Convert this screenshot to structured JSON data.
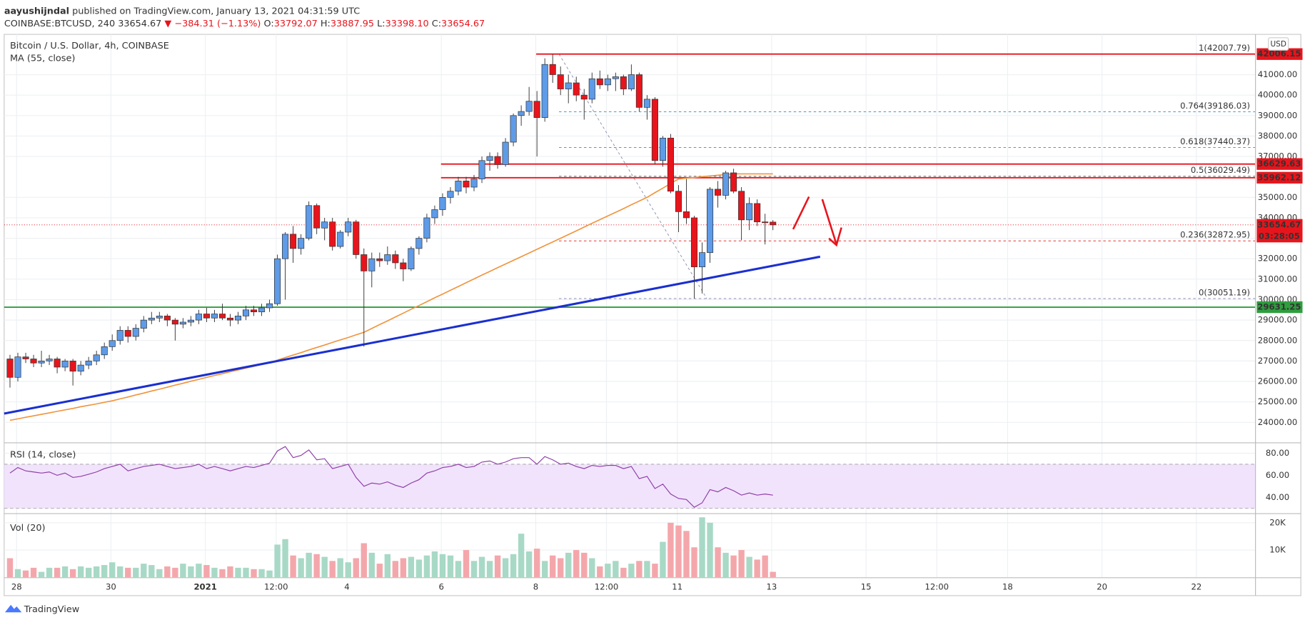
{
  "header": {
    "author": "aayushijndal",
    "published": "published on TradingView.com, January 13, 2021 04:31:59 UTC",
    "symbol": "COINBASE:BTCUSD, 240",
    "last": "33654.67",
    "arrow": "▼",
    "change": "−384.31 (−1.13%)",
    "o_label": "O:",
    "o": "33792.07",
    "h_label": "H:",
    "h": "33887.95",
    "l_label": "L:",
    "l": "33398.10",
    "c_label": "C:",
    "c": "33654.67"
  },
  "footer": {
    "brand": "TradingView"
  },
  "chart_data": [
    {
      "type": "candlestick",
      "title": "Bitcoin / U.S. Dollar, 4h, COINBASE",
      "currency": "USD",
      "up_color": "#5e9be8",
      "down_color": "#e8141c",
      "xlim": [
        -0.74,
        158.3
      ],
      "ylim": [
        23060,
        42970
      ],
      "xticks": [
        {
          "value": 0.84,
          "label": "28"
        },
        {
          "value": 12.84,
          "label": "30"
        },
        {
          "value": 24.84,
          "label": "2021"
        },
        {
          "value": 33.84,
          "label": "12:00"
        },
        {
          "value": 42.84,
          "label": "4"
        },
        {
          "value": 54.84,
          "label": "6"
        },
        {
          "value": 66.84,
          "label": "8"
        },
        {
          "value": 75.84,
          "label": "12:00"
        },
        {
          "value": 84.84,
          "label": "11"
        },
        {
          "value": 96.84,
          "label": "13"
        },
        {
          "value": 108.84,
          "label": "15"
        },
        {
          "value": 117.84,
          "label": "12:00"
        },
        {
          "value": 126.84,
          "label": "18"
        },
        {
          "value": 138.84,
          "label": "20"
        },
        {
          "value": 150.84,
          "label": "22"
        }
      ],
      "yticks": [
        {
          "value": 24000,
          "label": "24000.00"
        },
        {
          "value": 25000,
          "label": "25000.00"
        },
        {
          "value": 26000,
          "label": "26000.00"
        },
        {
          "value": 27000,
          "label": "27000.00"
        },
        {
          "value": 28000,
          "label": "28000.00"
        },
        {
          "value": 29000,
          "label": "29000.00"
        },
        {
          "value": 30000,
          "label": "30000.00"
        },
        {
          "value": 31000,
          "label": "31000.00"
        },
        {
          "value": 32000,
          "label": "32000.00"
        },
        {
          "value": 33000,
          "label": "33000.00"
        },
        {
          "value": 34000,
          "label": "34000.00"
        },
        {
          "value": 35000,
          "label": "35000.00"
        },
        {
          "value": 37000,
          "label": "37000.00"
        },
        {
          "value": 38000,
          "label": "38000.00"
        },
        {
          "value": 39000,
          "label": "39000.00"
        },
        {
          "value": 40000,
          "label": "40000.00"
        },
        {
          "value": 41000,
          "label": "41000.00"
        }
      ],
      "candles": [
        [
          27100,
          27300,
          25700,
          26200
        ],
        [
          26200,
          27400,
          26000,
          27200
        ],
        [
          27200,
          27400,
          26900,
          27100
        ],
        [
          27100,
          27300,
          26700,
          26900
        ],
        [
          26900,
          27500,
          26700,
          27000
        ],
        [
          27000,
          27300,
          26800,
          27100
        ],
        [
          27100,
          27200,
          26400,
          26700
        ],
        [
          26700,
          27100,
          26500,
          27000
        ],
        [
          27000,
          27100,
          25800,
          26500
        ],
        [
          26500,
          27000,
          26300,
          26800
        ],
        [
          26800,
          27200,
          26600,
          27000
        ],
        [
          27000,
          27500,
          26800,
          27300
        ],
        [
          27300,
          27900,
          27100,
          27700
        ],
        [
          27700,
          28300,
          27500,
          28000
        ],
        [
          28000,
          28700,
          27800,
          28500
        ],
        [
          28500,
          28700,
          27900,
          28200
        ],
        [
          28200,
          28800,
          28000,
          28600
        ],
        [
          28600,
          29200,
          28400,
          29000
        ],
        [
          29000,
          29400,
          28800,
          29100
        ],
        [
          29100,
          29400,
          28900,
          29200
        ],
        [
          29200,
          29300,
          28700,
          29000
        ],
        [
          29000,
          29100,
          28000,
          28800
        ],
        [
          28800,
          29100,
          28600,
          28900
        ],
        [
          28900,
          29200,
          28700,
          29000
        ],
        [
          29000,
          29500,
          28800,
          29300
        ],
        [
          29300,
          29600,
          28900,
          29100
        ],
        [
          29100,
          29500,
          28900,
          29300
        ],
        [
          29300,
          29800,
          29000,
          29100
        ],
        [
          29100,
          29300,
          28700,
          29000
        ],
        [
          29000,
          29400,
          28800,
          29200
        ],
        [
          29200,
          29700,
          29000,
          29500
        ],
        [
          29500,
          29700,
          29200,
          29400
        ],
        [
          29400,
          29800,
          29200,
          29600
        ],
        [
          29600,
          30000,
          29400,
          29800
        ],
        [
          29800,
          32200,
          29700,
          32000
        ],
        [
          32000,
          33300,
          30000,
          33200
        ],
        [
          33200,
          33600,
          31800,
          32500
        ],
        [
          32500,
          33200,
          32200,
          33000
        ],
        [
          33000,
          34800,
          32900,
          34600
        ],
        [
          34600,
          34700,
          33200,
          33500
        ],
        [
          33500,
          34000,
          32900,
          33800
        ],
        [
          33800,
          34000,
          32400,
          32600
        ],
        [
          32600,
          33400,
          32500,
          33300
        ],
        [
          33300,
          34000,
          33100,
          33800
        ],
        [
          33800,
          33900,
          32000,
          32200
        ],
        [
          32200,
          32500,
          27700,
          31400
        ],
        [
          31400,
          32300,
          30600,
          32000
        ],
        [
          32000,
          32300,
          31600,
          31900
        ],
        [
          31900,
          32600,
          31700,
          32200
        ],
        [
          32200,
          32400,
          31500,
          31800
        ],
        [
          31800,
          32000,
          30900,
          31500
        ],
        [
          31500,
          32600,
          31400,
          32500
        ],
        [
          32500,
          33100,
          32200,
          33000
        ],
        [
          33000,
          34200,
          32800,
          34000
        ],
        [
          34000,
          34600,
          33700,
          34400
        ],
        [
          34400,
          35200,
          34100,
          35000
        ],
        [
          35000,
          35500,
          34700,
          35300
        ],
        [
          35300,
          36000,
          35100,
          35800
        ],
        [
          35800,
          36000,
          35200,
          35500
        ],
        [
          35500,
          36100,
          35300,
          35900
        ],
        [
          35900,
          37000,
          35700,
          36800
        ],
        [
          36800,
          37200,
          36300,
          37000
        ],
        [
          37000,
          37200,
          36400,
          36600
        ],
        [
          36600,
          37900,
          36500,
          37700
        ],
        [
          37700,
          39100,
          37500,
          39000
        ],
        [
          39000,
          39500,
          38500,
          39200
        ],
        [
          39200,
          40400,
          39000,
          39700
        ],
        [
          39700,
          40200,
          37000,
          38900
        ],
        [
          38900,
          41800,
          38700,
          41500
        ],
        [
          41500,
          42000,
          40600,
          41000
        ],
        [
          41000,
          41400,
          40000,
          40300
        ],
        [
          40300,
          41000,
          39600,
          40600
        ],
        [
          40600,
          40900,
          39700,
          40000
        ],
        [
          40000,
          40300,
          38800,
          39800
        ],
        [
          39800,
          41100,
          39600,
          40800
        ],
        [
          40800,
          41200,
          40300,
          40500
        ],
        [
          40500,
          41000,
          40200,
          40800
        ],
        [
          40800,
          41100,
          40200,
          40900
        ],
        [
          40900,
          41000,
          40000,
          40300
        ],
        [
          40300,
          41500,
          40200,
          41000
        ],
        [
          41000,
          41100,
          39200,
          39400
        ],
        [
          39400,
          40000,
          38800,
          39800
        ],
        [
          39800,
          39900,
          36600,
          36800
        ],
        [
          36800,
          38000,
          36500,
          37900
        ],
        [
          37900,
          38100,
          35200,
          35300
        ],
        [
          35300,
          35600,
          33300,
          34300
        ],
        [
          34300,
          35900,
          33700,
          34000
        ],
        [
          34000,
          34100,
          30050,
          31600
        ],
        [
          31600,
          32800,
          30300,
          32300
        ],
        [
          32300,
          35500,
          31800,
          35400
        ],
        [
          35400,
          35800,
          34500,
          35100
        ],
        [
          35100,
          36300,
          34900,
          36200
        ],
        [
          36200,
          36400,
          35200,
          35300
        ],
        [
          35300,
          35500,
          32900,
          33900
        ],
        [
          33900,
          35000,
          33400,
          34700
        ],
        [
          34700,
          34900,
          33600,
          33800
        ],
        [
          33800,
          34200,
          32700,
          33792.07
        ],
        [
          33792.07,
          33887.95,
          33398.1,
          33654.67
        ]
      ],
      "ma": {
        "name": "MA (55, close)",
        "color": "#f0943c",
        "values": [
          24100,
          24170,
          24250,
          24320,
          24390,
          24460,
          24540,
          24610,
          24680,
          24760,
          24830,
          24900,
          24980,
          25050,
          25150,
          25240,
          25340,
          25430,
          25530,
          25620,
          25720,
          25820,
          25910,
          26010,
          26100,
          26200,
          26290,
          26380,
          26470,
          26560,
          26650,
          26740,
          26830,
          26920,
          27040,
          27170,
          27290,
          27410,
          27540,
          27660,
          27780,
          27910,
          28030,
          28150,
          28280,
          28400,
          28590,
          28780,
          28960,
          29150,
          29340,
          29530,
          29710,
          29900,
          30090,
          30270,
          30460,
          30640,
          30830,
          31010,
          31200,
          31380,
          31560,
          31740,
          31920,
          32100,
          32280,
          32460,
          32640,
          32820,
          33000,
          33180,
          33360,
          33550,
          33730,
          33910,
          34090,
          34270,
          34450,
          34640,
          34820,
          35000,
          35230,
          35450,
          35680,
          35900,
          35940,
          35970,
          36010,
          36050,
          36080,
          36120,
          36150,
          36150,
          36150,
          36150,
          36150,
          36150
        ]
      },
      "levels": [
        {
          "value": 42006.15,
          "from": 66.9,
          "color": "#e8141c"
        },
        {
          "value": 36629.63,
          "from": 54.8,
          "color": "#e8141c"
        },
        {
          "value": 35962.12,
          "from": 54.8,
          "color": "#e8141c"
        },
        {
          "value": 29631.25,
          "from": -0.74,
          "color": "#2e9e3e"
        }
      ],
      "fib": [
        {
          "value": 42007.79,
          "label": "1(42007.79)",
          "color": "#5a9bd5"
        },
        {
          "value": 39186.03,
          "label": "0.764(39186.03)",
          "color": "#2a8fc4"
        },
        {
          "value": 37440.37,
          "label": "0.618(37440.37)",
          "color": "#22a37c"
        },
        {
          "value": 36029.49,
          "label": "0.5(36029.49)",
          "color": "#555555"
        },
        {
          "value": 32872.95,
          "label": "0.236(32872.95)",
          "color": "#e53935"
        },
        {
          "value": 30051.19,
          "label": "0(30051.19)",
          "color": "#8a8fb0"
        }
      ],
      "fib_from": 69.8,
      "fib_connector": {
        "x": [
          69.8,
          88.6
        ],
        "y": [
          42007.79,
          30051.19
        ]
      },
      "trendline": {
        "color": "#1a2fd0",
        "x": [
          -0.74,
          103
        ],
        "y": [
          24430,
          32100
        ]
      },
      "last_price": {
        "value": 33654.67,
        "color": "#e8141c"
      },
      "countdown": "03:28:05"
    },
    {
      "type": "line",
      "title": "RSI (14, close)",
      "color": "#8e3fa8",
      "band": [
        30,
        70
      ],
      "band_color": "#f1e3fc",
      "ylim": [
        26.4,
        88.3
      ],
      "yticks": [
        {
          "value": 80,
          "label": "80.00"
        },
        {
          "value": 60,
          "label": "60.00"
        },
        {
          "value": 40,
          "label": "40.00"
        }
      ],
      "values": [
        62,
        67,
        64,
        63,
        62,
        63,
        60,
        62,
        58,
        59,
        61,
        63,
        66,
        68,
        70,
        64,
        66,
        68,
        69,
        70,
        68,
        66,
        67,
        68,
        70,
        66,
        68,
        66,
        64,
        66,
        68,
        67,
        69,
        71,
        82,
        86,
        76,
        78,
        83,
        74,
        75,
        66,
        68,
        70,
        58,
        50,
        53,
        52,
        54,
        51,
        49,
        53,
        56,
        62,
        64,
        67,
        68,
        70,
        67,
        68,
        72,
        73,
        70,
        72,
        75,
        76,
        76,
        70,
        77,
        74,
        70,
        71,
        68,
        66,
        69,
        68,
        69,
        69,
        66,
        68,
        57,
        59,
        48,
        52,
        43,
        39,
        38,
        31,
        35,
        47,
        45,
        49,
        46,
        42,
        44,
        42,
        43,
        42
      ]
    },
    {
      "type": "bar",
      "title": "Vol (20)",
      "up_color": "#a8d9c6",
      "down_color": "#f4a7ab",
      "ylim": [
        0,
        22900
      ],
      "yticks": [
        {
          "value": 20000,
          "label": "20K"
        },
        {
          "value": 10000,
          "label": "10K"
        }
      ],
      "values": [
        7000,
        3000,
        2500,
        3500,
        2000,
        3500,
        3500,
        4000,
        3000,
        4000,
        3500,
        4000,
        4500,
        5500,
        4000,
        3500,
        3500,
        5000,
        4500,
        3000,
        4000,
        3500,
        5000,
        4000,
        5000,
        4500,
        3500,
        3000,
        4000,
        3500,
        3500,
        3000,
        3000,
        2500,
        12000,
        14000,
        8000,
        7000,
        9000,
        8500,
        7500,
        6000,
        7000,
        5500,
        7000,
        12500,
        9000,
        5000,
        8500,
        6000,
        7000,
        7500,
        6500,
        8000,
        9500,
        8500,
        8000,
        6000,
        10000,
        6000,
        7500,
        6000,
        8000,
        7000,
        8500,
        16000,
        9500,
        10500,
        6000,
        8000,
        7000,
        9000,
        10000,
        9000,
        7000,
        4000,
        5000,
        6000,
        3500,
        5000,
        6000,
        6000,
        5000,
        13000,
        20000,
        19000,
        17000,
        11000,
        22000,
        20000,
        11000,
        9000,
        8000,
        10000,
        7500,
        6500,
        8000,
        2000
      ]
    }
  ]
}
